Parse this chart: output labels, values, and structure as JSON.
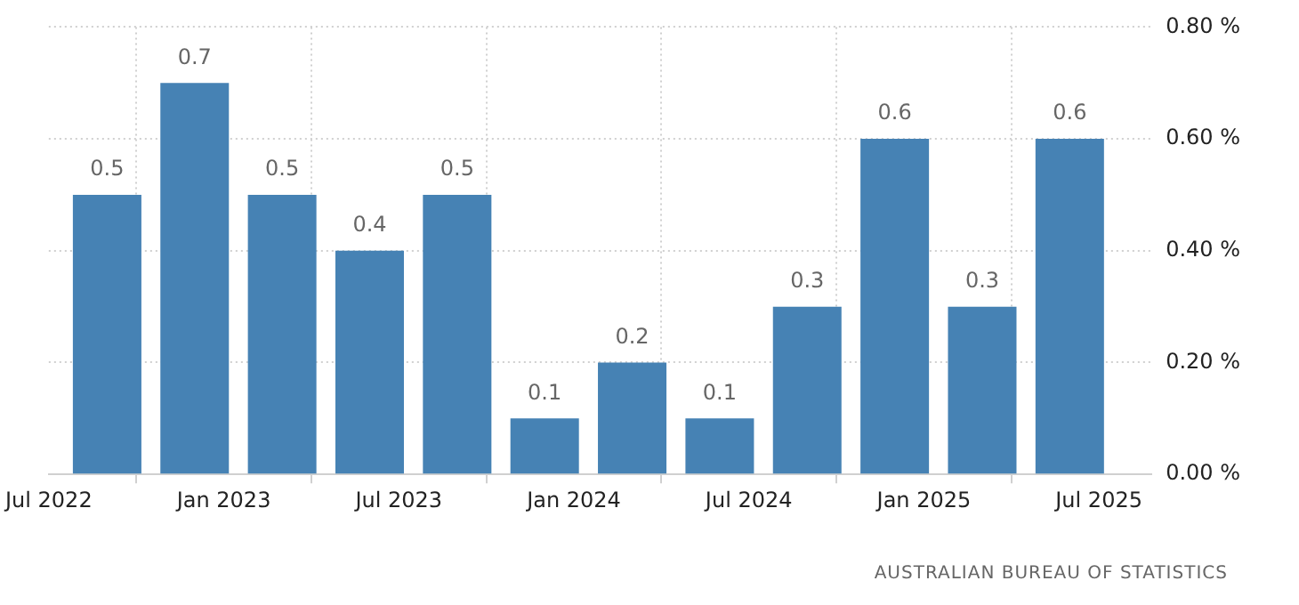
{
  "chart_data": {
    "type": "bar",
    "x": [
      "2022-09",
      "2022-12",
      "2023-03",
      "2023-06",
      "2023-09",
      "2023-12",
      "2024-03",
      "2024-06",
      "2024-09",
      "2024-12",
      "2025-03",
      "2025-06"
    ],
    "values": [
      0.5,
      0.7,
      0.5,
      0.4,
      0.5,
      0.1,
      0.2,
      0.1,
      0.3,
      0.6,
      0.3,
      0.6
    ],
    "color": "#4682b4",
    "data_labels": true,
    "xlim": [
      "2022-07",
      "2025-08-25"
    ],
    "xticks": [
      {
        "value": "2022-07",
        "label": "Jul 2022"
      },
      {
        "value": "2023-01",
        "label": "Jan 2023"
      },
      {
        "value": "2023-07",
        "label": "Jul 2023"
      },
      {
        "value": "2024-01",
        "label": "Jan 2024"
      },
      {
        "value": "2024-07",
        "label": "Jul 2024"
      },
      {
        "value": "2025-01",
        "label": "Jan 2025"
      },
      {
        "value": "2025-07",
        "label": "Jul 2025"
      }
    ],
    "ylim": [
      0,
      0.8
    ],
    "yticks": [
      {
        "value": 0,
        "label": "0.00 %"
      },
      {
        "value": 0.2,
        "label": "0.20 %"
      },
      {
        "value": 0.4,
        "label": "0.40 %"
      },
      {
        "value": 0.6,
        "label": "0.60 %"
      },
      {
        "value": 0.8,
        "label": "0.80 %"
      }
    ],
    "grid": true,
    "annotations": [
      "AUSTRALIAN BUREAU OF STATISTICS"
    ]
  }
}
